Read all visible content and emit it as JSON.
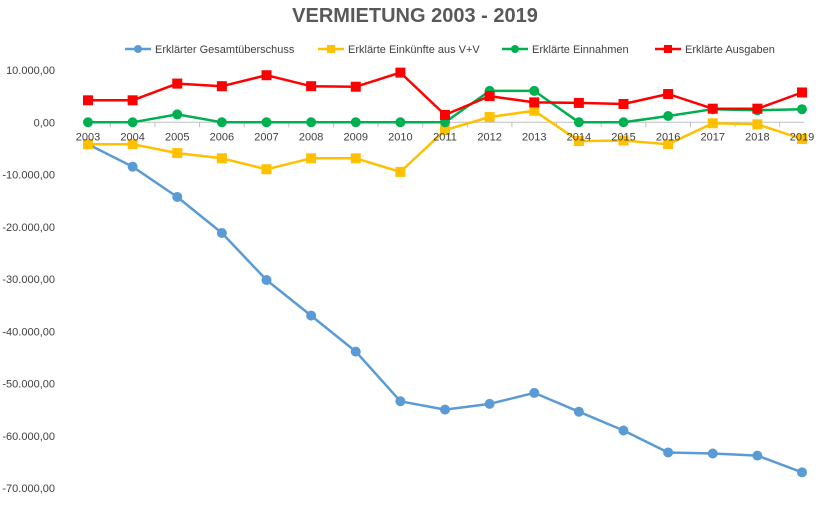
{
  "chart_data": {
    "type": "line",
    "title": "VERMIETUNG 2003 - 2019",
    "xlabel": "",
    "ylabel": "",
    "categories": [
      "2003",
      "2004",
      "2005",
      "2006",
      "2007",
      "2008",
      "2009",
      "2010",
      "2011",
      "2012",
      "2013",
      "2014",
      "2015",
      "2016",
      "2017",
      "2018",
      "2019"
    ],
    "ylim": [
      -70000,
      10000
    ],
    "yticks": [
      10000,
      0,
      -10000,
      -20000,
      -30000,
      -40000,
      -50000,
      -60000,
      -70000
    ],
    "ytick_labels": [
      "10.000,00",
      "0,00",
      "-10.000,00",
      "-20.000,00",
      "-30.000,00",
      "-40.000,00",
      "-50.000,00",
      "-60.000,00",
      "-70.000,00"
    ],
    "grid": false,
    "legend_position": "top",
    "series": [
      {
        "name": "Erklärter Gesamtüberschuss",
        "color": "#5b9bd5",
        "marker": "circle",
        "values": [
          -4200,
          -8500,
          -14300,
          -21200,
          -30200,
          -37000,
          -43900,
          -53400,
          -55000,
          -53900,
          -51800,
          -55400,
          -59000,
          -63200,
          -63400,
          -63800,
          -67000
        ]
      },
      {
        "name": "Erklärte Einkünfte aus V+V",
        "color": "#ffc000",
        "marker": "square",
        "values": [
          -4200,
          -4200,
          -5900,
          -6900,
          -9000,
          -6900,
          -6900,
          -9500,
          -1500,
          1000,
          2200,
          -3600,
          -3500,
          -4200,
          -200,
          -400,
          -3200
        ]
      },
      {
        "name": "Erklärte Einnahmen",
        "color": "#00b050",
        "marker": "circle",
        "values": [
          0,
          0,
          1500,
          0,
          0,
          0,
          0,
          0,
          0,
          6000,
          6000,
          0,
          0,
          1200,
          2500,
          2300,
          2500
        ]
      },
      {
        "name": "Erklärte Ausgaben",
        "color": "#ff0000",
        "marker": "square",
        "values": [
          4200,
          4200,
          7400,
          6900,
          9000,
          6900,
          6800,
          9500,
          1400,
          5000,
          3800,
          3700,
          3500,
          5400,
          2600,
          2600,
          5700
        ]
      }
    ]
  }
}
